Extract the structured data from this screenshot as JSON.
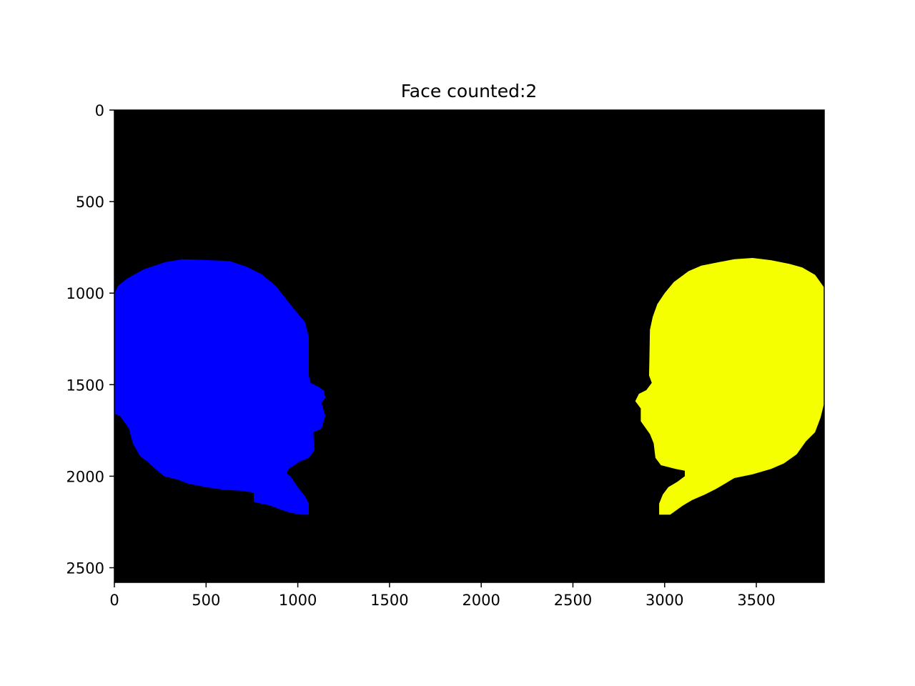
{
  "chart_data": {
    "type": "heatmap",
    "title": "Face counted:2",
    "xlabel": "",
    "ylabel": "",
    "xlim": [
      0,
      3870
    ],
    "ylim": [
      2580,
      0
    ],
    "xticks": [
      0,
      500,
      1000,
      1500,
      2000,
      2500,
      3000,
      3500
    ],
    "yticks": [
      0,
      500,
      1000,
      1500,
      2000,
      2500
    ],
    "grid": false,
    "background_color": "#000000",
    "regions": [
      {
        "color": "#0000ff",
        "outline": [
          [
            0,
            1000
          ],
          [
            20,
            960
          ],
          [
            70,
            920
          ],
          [
            160,
            870
          ],
          [
            280,
            830
          ],
          [
            370,
            815
          ],
          [
            480,
            818
          ],
          [
            630,
            825
          ],
          [
            720,
            855
          ],
          [
            800,
            895
          ],
          [
            880,
            960
          ],
          [
            950,
            1050
          ],
          [
            1040,
            1160
          ],
          [
            1060,
            1240
          ],
          [
            1060,
            1450
          ],
          [
            1070,
            1490
          ],
          [
            1110,
            1510
          ],
          [
            1140,
            1530
          ],
          [
            1150,
            1570
          ],
          [
            1130,
            1600
          ],
          [
            1150,
            1670
          ],
          [
            1130,
            1740
          ],
          [
            1085,
            1760
          ],
          [
            1090,
            1860
          ],
          [
            1060,
            1900
          ],
          [
            1010,
            1920
          ],
          [
            950,
            1960
          ],
          [
            940,
            1985
          ],
          [
            960,
            2000
          ],
          [
            1000,
            2060
          ],
          [
            1040,
            2110
          ],
          [
            1060,
            2150
          ],
          [
            1060,
            2210
          ],
          [
            1020,
            2210
          ],
          [
            960,
            2200
          ],
          [
            900,
            2180
          ],
          [
            850,
            2160
          ],
          [
            800,
            2150
          ],
          [
            760,
            2140
          ],
          [
            760,
            2090
          ],
          [
            700,
            2080
          ],
          [
            600,
            2075
          ],
          [
            500,
            2060
          ],
          [
            400,
            2040
          ],
          [
            350,
            2020
          ],
          [
            270,
            2000
          ],
          [
            200,
            1940
          ],
          [
            180,
            1920
          ],
          [
            140,
            1890
          ],
          [
            100,
            1820
          ],
          [
            80,
            1740
          ],
          [
            30,
            1670
          ],
          [
            0,
            1660
          ]
        ]
      },
      {
        "color": "#f5ff00",
        "outline": [
          [
            3870,
            970
          ],
          [
            3820,
            900
          ],
          [
            3750,
            860
          ],
          [
            3680,
            840
          ],
          [
            3580,
            820
          ],
          [
            3480,
            808
          ],
          [
            3380,
            815
          ],
          [
            3300,
            830
          ],
          [
            3200,
            850
          ],
          [
            3130,
            880
          ],
          [
            3050,
            940
          ],
          [
            3000,
            1000
          ],
          [
            2960,
            1060
          ],
          [
            2935,
            1130
          ],
          [
            2920,
            1200
          ],
          [
            2915,
            1450
          ],
          [
            2930,
            1490
          ],
          [
            2900,
            1530
          ],
          [
            2860,
            1550
          ],
          [
            2840,
            1590
          ],
          [
            2870,
            1630
          ],
          [
            2870,
            1700
          ],
          [
            2920,
            1770
          ],
          [
            2940,
            1820
          ],
          [
            2950,
            1900
          ],
          [
            2980,
            1940
          ],
          [
            3060,
            1960
          ],
          [
            3110,
            1970
          ],
          [
            3110,
            2000
          ],
          [
            3070,
            2030
          ],
          [
            3020,
            2060
          ],
          [
            2990,
            2100
          ],
          [
            2970,
            2150
          ],
          [
            2970,
            2210
          ],
          [
            3030,
            2210
          ],
          [
            3100,
            2160
          ],
          [
            3150,
            2130
          ],
          [
            3220,
            2100
          ],
          [
            3280,
            2070
          ],
          [
            3330,
            2040
          ],
          [
            3380,
            2010
          ],
          [
            3480,
            1990
          ],
          [
            3580,
            1960
          ],
          [
            3650,
            1930
          ],
          [
            3720,
            1880
          ],
          [
            3770,
            1810
          ],
          [
            3820,
            1760
          ],
          [
            3850,
            1680
          ],
          [
            3870,
            1600
          ]
        ]
      }
    ]
  }
}
